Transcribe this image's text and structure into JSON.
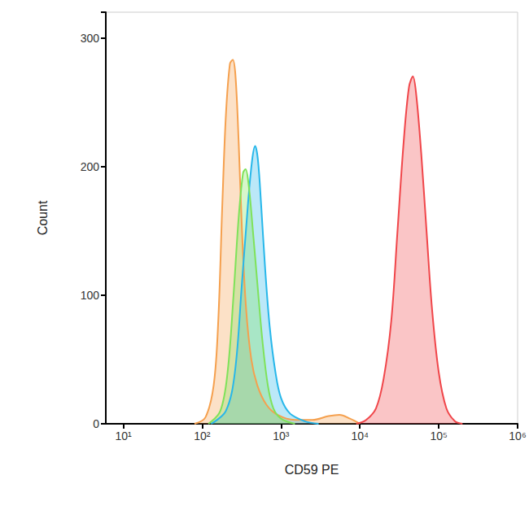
{
  "chart_data": {
    "type": "area",
    "x_label": "CD59 PE",
    "y_label": "Count",
    "log": "x",
    "grid": false,
    "xlim": [
      6,
      1000000
    ],
    "xticks": [
      {
        "value": 10,
        "label": "10¹"
      },
      {
        "value": 100,
        "label": "10²"
      },
      {
        "value": 1000,
        "label": "10³"
      },
      {
        "value": 10000,
        "label": "10⁴"
      },
      {
        "value": 100000,
        "label": "10⁵"
      },
      {
        "value": 1000000,
        "label": "10⁶"
      }
    ],
    "ylim": [
      0,
      320
    ],
    "yticks": [
      0,
      100,
      200,
      300
    ],
    "series": [
      {
        "color": "#f5a04e",
        "x": [
          80,
          110,
          140,
          160,
          180,
          200,
          225,
          245,
          265,
          290,
          320,
          360,
          420,
          500,
          650,
          900,
          1500,
          2500,
          4000,
          5500,
          7500,
          10000
        ],
        "values": [
          0,
          5,
          30,
          80,
          170,
          240,
          280,
          283,
          270,
          220,
          150,
          90,
          50,
          30,
          15,
          7,
          3,
          3,
          6,
          7,
          4,
          0
        ]
      },
      {
        "color": "#27b7ea",
        "x": [
          130,
          200,
          260,
          320,
          380,
          430,
          470,
          510,
          560,
          630,
          720,
          850,
          1000,
          1300,
          2000,
          3000
        ],
        "values": [
          0,
          10,
          40,
          110,
          170,
          205,
          216,
          205,
          170,
          120,
          75,
          40,
          20,
          8,
          2,
          0
        ]
      },
      {
        "color": "#7fe25a",
        "x": [
          120,
          170,
          210,
          250,
          290,
          330,
          355,
          390,
          440,
          500,
          580,
          680,
          800,
          1000,
          1500
        ],
        "values": [
          0,
          10,
          40,
          100,
          160,
          195,
          198,
          185,
          150,
          110,
          65,
          30,
          12,
          4,
          0
        ]
      },
      {
        "color": "#f0464a",
        "x": [
          9000,
          12000,
          16000,
          20000,
          25000,
          30000,
          36000,
          42000,
          47000,
          52000,
          60000,
          70000,
          82000,
          100000,
          125000,
          160000,
          200000
        ],
        "values": [
          0,
          3,
          12,
          35,
          80,
          150,
          220,
          262,
          270,
          255,
          210,
          150,
          90,
          40,
          12,
          2,
          0
        ]
      }
    ]
  }
}
